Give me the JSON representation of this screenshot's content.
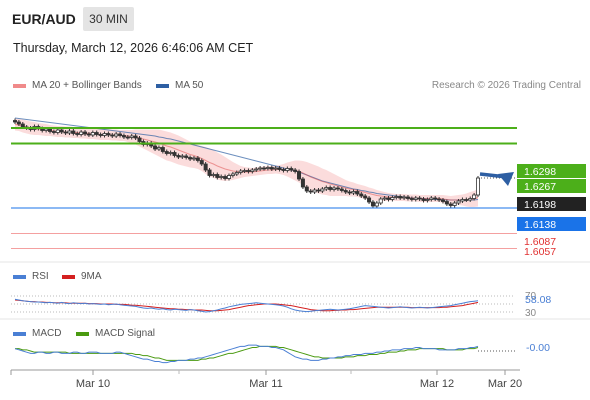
{
  "header": {
    "symbol": "EUR/AUD",
    "timeframe": "30 MIN",
    "datetime": "Thursday, March 12, 2026 6:46:06 AM CET"
  },
  "legend": {
    "ma20": {
      "label": "MA 20 + Bollinger Bands",
      "color": "#f08a8a"
    },
    "ma50": {
      "label": "MA 50",
      "color": "#2e5fa3"
    },
    "credit": "Research © 2026 Trading Central"
  },
  "rsi_legend": {
    "rsi": "RSI",
    "ma": "9MA",
    "rsi_color": "#4a7fd4",
    "ma_color": "#d42020"
  },
  "macd_legend": {
    "macd": "MACD",
    "signal": "MACD Signal",
    "macd_color": "#4a7fd4",
    "signal_color": "#4a9a10"
  },
  "chart_data": {
    "type": "candlestick",
    "price_range": [
      1.604,
      1.636
    ],
    "x_labels": [
      "Mar 10",
      "Mar 11",
      "Mar 12",
      "Mar 20"
    ],
    "levels": [
      {
        "value": "1.6298",
        "color": "#4caf1a",
        "text_color": "#ffffff",
        "kind": "resistance"
      },
      {
        "value": "1.6267",
        "color": "#4caf1a",
        "text_color": "#ffffff",
        "kind": "resistance"
      },
      {
        "value": "1.6198",
        "color": "#222222",
        "text_color": "#ffffff",
        "kind": "last"
      },
      {
        "value": "1.6138",
        "color": "#1a73e8",
        "text_color": "#ffffff",
        "kind": "pivot"
      },
      {
        "value": "1.6087",
        "color": "#f4a0a0",
        "text_color": "#e03030",
        "kind": "support"
      },
      {
        "value": "1.6057",
        "color": "#f4a0a0",
        "text_color": "#e03030",
        "kind": "support"
      }
    ],
    "close": [
      1.631,
      1.6306,
      1.63,
      1.6298,
      1.6295,
      1.6301,
      1.6297,
      1.6293,
      1.6296,
      1.6291,
      1.6289,
      1.6294,
      1.629,
      1.6288,
      1.6292,
      1.6287,
      1.6285,
      1.629,
      1.6286,
      1.6284,
      1.6289,
      1.6285,
      1.6283,
      1.6287,
      1.6284,
      1.6282,
      1.6286,
      1.6283,
      1.628,
      1.6279,
      1.6282,
      1.6278,
      1.6271,
      1.6265,
      1.6268,
      1.6262,
      1.6256,
      1.6259,
      1.6251,
      1.6247,
      1.6249,
      1.6243,
      1.624,
      1.6242,
      1.6239,
      1.6236,
      1.6238,
      1.6233,
      1.6226,
      1.6214,
      1.6203,
      1.6205,
      1.6199,
      1.6201,
      1.6197,
      1.6203,
      1.6206,
      1.6209,
      1.6212,
      1.6213,
      1.6211,
      1.6214,
      1.6216,
      1.6218,
      1.6217,
      1.6219,
      1.6216,
      1.6218,
      1.6215,
      1.6213,
      1.6217,
      1.6214,
      1.6211,
      1.6196,
      1.618,
      1.6172,
      1.617,
      1.6174,
      1.6172,
      1.6176,
      1.6179,
      1.6175,
      1.6178,
      1.6176,
      1.6173,
      1.617,
      1.6168,
      1.6171,
      1.6166,
      1.6162,
      1.6158,
      1.615,
      1.6142,
      1.6148,
      1.6156,
      1.6158,
      1.6155,
      1.6159,
      1.6161,
      1.6158,
      1.616,
      1.6157,
      1.6155,
      1.6158,
      1.6156,
      1.6153,
      1.6155,
      1.6158,
      1.6156,
      1.6154,
      1.6151,
      1.6146,
      1.6143,
      1.6148,
      1.6152,
      1.6155,
      1.6154,
      1.6157,
      1.6164,
      1.6198
    ],
    "ma20": [
      1.6305,
      1.6304,
      1.6302,
      1.63,
      1.6298,
      1.6297,
      1.6296,
      1.6295,
      1.6294,
      1.6293,
      1.6292,
      1.6291,
      1.6291,
      1.629,
      1.629,
      1.6289,
      1.6289,
      1.6288,
      1.6288,
      1.6287,
      1.6287,
      1.6286,
      1.6285,
      1.6285,
      1.6285,
      1.6284,
      1.6284,
      1.6283,
      1.6283,
      1.6282,
      1.6281,
      1.628,
      1.6278,
      1.6276,
      1.6274,
      1.6272,
      1.627,
      1.6268,
      1.6265,
      1.6262,
      1.626,
      1.6257,
      1.6254,
      1.6251,
      1.6248,
      1.6245,
      1.6243,
      1.624,
      1.6237,
      1.6233,
      1.6229,
      1.6226,
      1.6222,
      1.6219,
      1.6216,
      1.6214,
      1.6212,
      1.6211,
      1.621,
      1.621,
      1.621,
      1.621,
      1.6211,
      1.6212,
      1.6213,
      1.6214,
      1.6214,
      1.6215,
      1.6215,
      1.6215,
      1.6215,
      1.6214,
      1.6213,
      1.6211,
      1.6208,
      1.6204,
      1.62,
      1.6197,
      1.6194,
      1.6191,
      1.6189,
      1.6186,
      1.6184,
      1.6182,
      1.618,
      1.6178,
      1.6176,
      1.6175,
      1.6173,
      1.6171,
      1.6169,
      1.6167,
      1.6165,
      1.6163,
      1.6162,
      1.6161,
      1.616,
      1.616,
      1.6159,
      1.6159,
      1.6159,
      1.6158,
      1.6158,
      1.6158,
      1.6157,
      1.6157,
      1.6157,
      1.6157,
      1.6157,
      1.6157,
      1.6156,
      1.6155,
      1.6154,
      1.6154,
      1.6154,
      1.6154,
      1.6154,
      1.6155,
      1.6156,
      1.6159
    ],
    "ma50": [
      1.6318,
      1.6317,
      1.6316,
      1.6315,
      1.6314,
      1.6313,
      1.6312,
      1.6311,
      1.631,
      1.6309,
      1.6308,
      1.6307,
      1.6306,
      1.6305,
      1.6304,
      1.6303,
      1.6302,
      1.6301,
      1.63,
      1.6299,
      1.6298,
      1.6297,
      1.6296,
      1.6295,
      1.6294,
      1.6293,
      1.6292,
      1.6291,
      1.629,
      1.6289,
      1.6288,
      1.6287,
      1.6286,
      1.6285,
      1.6284,
      1.6283,
      1.6282,
      1.628,
      1.6279,
      1.6277,
      1.6276,
      1.6274,
      1.6272,
      1.627,
      1.6268,
      1.6266,
      1.6264,
      1.6262,
      1.626,
      1.6258,
      1.6256,
      1.6254,
      1.6252,
      1.625,
      1.6248,
      1.6246,
      1.6244,
      1.6242,
      1.624,
      1.6238,
      1.6236,
      1.6234,
      1.6232,
      1.623,
      1.6228,
      1.6226,
      1.6224,
      1.6222,
      1.622,
      1.6218,
      1.6216,
      1.6214,
      1.6212,
      1.621,
      1.6207,
      1.6204,
      1.6201,
      1.6198,
      1.6195,
      1.6192,
      1.619,
      1.6188,
      1.6186,
      1.6184,
      1.6182,
      1.618,
      1.6178,
      1.6176,
      1.6175,
      1.6173,
      1.6172,
      1.617,
      1.6169,
      1.6167,
      1.6166,
      1.6165,
      1.6164,
      1.6163,
      1.6162,
      1.6161,
      1.616,
      1.6159,
      1.6158,
      1.6158,
      1.6157,
      1.6157,
      1.6156,
      1.6156,
      1.6155,
      1.6155,
      1.6155,
      1.6154,
      1.6154,
      1.6154,
      1.6154,
      1.6154,
      1.6154,
      1.6154,
      1.6154,
      1.6155
    ],
    "bb_width": [
      0.0012,
      0.0012,
      0.0013,
      0.0013,
      0.0013,
      0.0013,
      0.0012,
      0.0012,
      0.0012,
      0.0011,
      0.0011,
      0.0011,
      0.0011,
      0.0011,
      0.0011,
      0.0011,
      0.0011,
      0.0011,
      0.0011,
      0.0011,
      0.0011,
      0.0011,
      0.0011,
      0.0011,
      0.0011,
      0.0011,
      0.0011,
      0.0011,
      0.0011,
      0.0012,
      0.0013,
      0.0015,
      0.0017,
      0.0019,
      0.0021,
      0.0023,
      0.0025,
      0.0027,
      0.0028,
      0.0029,
      0.0029,
      0.0029,
      0.0029,
      0.0028,
      0.0027,
      0.0026,
      0.0025,
      0.0024,
      0.0025,
      0.0027,
      0.0028,
      0.0028,
      0.0027,
      0.0026,
      0.0024,
      0.0021,
      0.0018,
      0.0015,
      0.0012,
      0.001,
      0.0009,
      0.0008,
      0.0008,
      0.0008,
      0.0008,
      0.0008,
      0.0008,
      0.0008,
      0.0009,
      0.0011,
      0.0014,
      0.0017,
      0.002,
      0.0022,
      0.0024,
      0.0026,
      0.0027,
      0.0027,
      0.0027,
      0.0026,
      0.0025,
      0.0024,
      0.0022,
      0.002,
      0.0018,
      0.0016,
      0.0015,
      0.0014,
      0.0013,
      0.0013,
      0.0013,
      0.0012,
      0.0012,
      0.0011,
      0.001,
      0.0009,
      0.0008,
      0.0007,
      0.0007,
      0.0007,
      0.0007,
      0.0007,
      0.0007,
      0.0007,
      0.0007,
      0.0007,
      0.0007,
      0.0007,
      0.0007,
      0.0007,
      0.0008,
      0.0008,
      0.0008,
      0.0009,
      0.001,
      0.0011,
      0.0013,
      0.0015,
      0.0016,
      0.0018
    ],
    "rsi": {
      "value_label": "58.08",
      "levels": [
        "70",
        "30"
      ],
      "range": [
        20,
        80
      ],
      "rsi": [
        62,
        60,
        58,
        57,
        56,
        55,
        55,
        54,
        53,
        54,
        53,
        52,
        54,
        52,
        51,
        53,
        52,
        51,
        52,
        50,
        51,
        50,
        49,
        50,
        48,
        49,
        50,
        48,
        47,
        46,
        45,
        44,
        42,
        40,
        39,
        40,
        38,
        37,
        38,
        36,
        35,
        37,
        36,
        35,
        34,
        36,
        35,
        33,
        32,
        30,
        31,
        33,
        35,
        38,
        40,
        43,
        45,
        47,
        49,
        50,
        51,
        52,
        53,
        52,
        51,
        50,
        49,
        48,
        47,
        45,
        42,
        38,
        35,
        33,
        32,
        31,
        32,
        33,
        34,
        35,
        36,
        37,
        36,
        35,
        36,
        37,
        38,
        40,
        42,
        44,
        46,
        45,
        44,
        43,
        42,
        41,
        40,
        41,
        42,
        43,
        42,
        41,
        40,
        41,
        42,
        41,
        40,
        41,
        42,
        43,
        44,
        45,
        46,
        48,
        50,
        52,
        54,
        56,
        57,
        58.08
      ],
      "ma": [
        60,
        59,
        58,
        57,
        56,
        56,
        55,
        55,
        54,
        54,
        53,
        53,
        53,
        53,
        52,
        52,
        52,
        52,
        52,
        51,
        51,
        51,
        50,
        50,
        50,
        50,
        49,
        49,
        49,
        48,
        47,
        47,
        46,
        45,
        44,
        43,
        42,
        41,
        40,
        39,
        38,
        38,
        37,
        37,
        36,
        36,
        35,
        35,
        35,
        34,
        33,
        33,
        33,
        34,
        35,
        36,
        38,
        40,
        42,
        44,
        46,
        47,
        48,
        49,
        50,
        50,
        50,
        50,
        49,
        48,
        47,
        46,
        44,
        42,
        40,
        38,
        36,
        35,
        34,
        33,
        33,
        33,
        34,
        34,
        35,
        35,
        36,
        36,
        37,
        38,
        39,
        40,
        41,
        42,
        42,
        42,
        42,
        42,
        42,
        42,
        42,
        42,
        41,
        41,
        41,
        41,
        41,
        41,
        41,
        41,
        42,
        42,
        43,
        44,
        45,
        46,
        48,
        50,
        52,
        54
      ]
    },
    "macd": {
      "value_label": "-0.00",
      "range": [
        -0.0012,
        0.0012
      ],
      "macd": [
        0.0002,
        0.0001,
        0.0,
        -0.0001,
        -0.0002,
        -0.0002,
        -0.0001,
        -0.0001,
        -0.0002,
        -0.0002,
        -0.0001,
        -0.0001,
        -0.0002,
        -0.0002,
        -0.0002,
        -0.0001,
        -0.0001,
        -0.0002,
        -0.0002,
        -0.0001,
        -0.0001,
        -0.0001,
        -0.0002,
        -0.0002,
        -0.0002,
        -0.0002,
        -0.0001,
        -0.0001,
        -0.0002,
        -0.0003,
        -0.0004,
        -0.0005,
        -0.0006,
        -0.0007,
        -0.0007,
        -0.0008,
        -0.0009,
        -0.0009,
        -0.001,
        -0.001,
        -0.0009,
        -0.0009,
        -0.0008,
        -0.0008,
        -0.0008,
        -0.0007,
        -0.0007,
        -0.0006,
        -0.0006,
        -0.0005,
        -0.0004,
        -0.0003,
        -0.0002,
        -0.0001,
        0.0,
        0.0001,
        0.0002,
        0.0003,
        0.0004,
        0.0004,
        0.0005,
        0.0005,
        0.0005,
        0.0004,
        0.0004,
        0.0004,
        0.0003,
        0.0003,
        0.0002,
        0.0001,
        -0.0001,
        -0.0003,
        -0.0005,
        -0.0006,
        -0.0007,
        -0.0007,
        -0.0008,
        -0.0008,
        -0.0008,
        -0.0007,
        -0.0007,
        -0.0006,
        -0.0006,
        -0.0005,
        -0.0005,
        -0.0004,
        -0.0004,
        -0.0003,
        -0.0003,
        -0.0003,
        -0.0002,
        -0.0002,
        -0.0002,
        -0.0001,
        -0.0001,
        0.0,
        0.0,
        0.0001,
        0.0001,
        0.0001,
        0.0002,
        0.0002,
        0.0002,
        0.0003,
        0.0003,
        0.0002,
        0.0002,
        0.0002,
        0.0002,
        0.0001,
        0.0001,
        0.0001,
        0.0001,
        0.0001,
        0.0002,
        0.0002,
        0.0002,
        0.0003,
        0.0003,
        0.0004
      ],
      "signal": [
        0.0002,
        0.0002,
        0.0001,
        0.0001,
        0.0,
        -0.0001,
        -0.0001,
        -0.0001,
        -0.0001,
        -0.0001,
        -0.0001,
        -0.0001,
        -0.0001,
        -0.0001,
        -0.0002,
        -0.0002,
        -0.0002,
        -0.0002,
        -0.0002,
        -0.0002,
        -0.0002,
        -0.0002,
        -0.0002,
        -0.0002,
        -0.0002,
        -0.0002,
        -0.0002,
        -0.0002,
        -0.0002,
        -0.0002,
        -0.0002,
        -0.0003,
        -0.0003,
        -0.0004,
        -0.0004,
        -0.0005,
        -0.0006,
        -0.0006,
        -0.0007,
        -0.0008,
        -0.0008,
        -0.0008,
        -0.0008,
        -0.0008,
        -0.0008,
        -0.0008,
        -0.0008,
        -0.0008,
        -0.0007,
        -0.0007,
        -0.0006,
        -0.0006,
        -0.0005,
        -0.0004,
        -0.0003,
        -0.0002,
        -0.0002,
        -0.0001,
        0.0,
        0.0001,
        0.0002,
        0.0003,
        0.0003,
        0.0004,
        0.0004,
        0.0004,
        0.0004,
        0.0004,
        0.0003,
        0.0003,
        0.0002,
        0.0001,
        0.0,
        -0.0001,
        -0.0002,
        -0.0003,
        -0.0004,
        -0.0005,
        -0.0005,
        -0.0006,
        -0.0006,
        -0.0006,
        -0.0006,
        -0.0006,
        -0.0006,
        -0.0005,
        -0.0005,
        -0.0005,
        -0.0004,
        -0.0004,
        -0.0004,
        -0.0003,
        -0.0003,
        -0.0003,
        -0.0002,
        -0.0002,
        -0.0001,
        -0.0001,
        -0.0001,
        0.0,
        0.0,
        0.0001,
        0.0001,
        0.0001,
        0.0002,
        0.0002,
        0.0002,
        0.0002,
        0.0002,
        0.0002,
        0.0002,
        0.0001,
        0.0001,
        0.0001,
        0.0001,
        0.0001,
        0.0002,
        0.0002,
        0.0002,
        0.0003
      ]
    }
  }
}
